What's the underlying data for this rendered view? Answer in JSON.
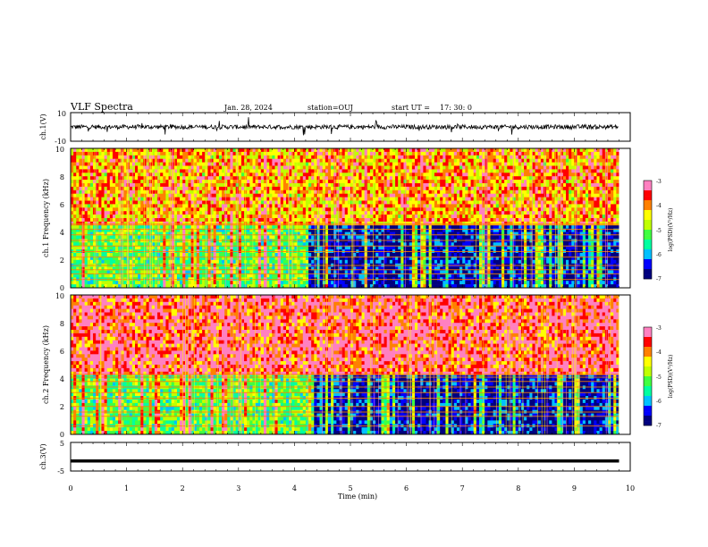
{
  "header": {
    "title": "VLF Spectra",
    "date": "Jan. 28, 2024",
    "station": "station=OUJ",
    "start_label": "start  UT =",
    "start_time": "17: 30: 0"
  },
  "chart_data": [
    {
      "type": "line",
      "name": "ch1-waveform",
      "ylabel": "ch.1(V)",
      "ylim": [
        -10,
        10
      ],
      "yticks": [
        "10",
        "-10"
      ],
      "xlim": [
        0,
        10
      ],
      "baseline": 0,
      "noise_amplitude": 1.5,
      "spike_amplitude": 6
    },
    {
      "type": "heatmap",
      "name": "ch1-spectrogram",
      "ylabel": "ch.1 Frequency (kHz)",
      "ylim": [
        0,
        10
      ],
      "yticks": [
        "0",
        "2",
        "4",
        "6",
        "8",
        "10"
      ],
      "xlim": [
        0,
        9.8
      ],
      "colorbar": {
        "label": "log(PSD)(V²/Hz)",
        "range": [
          -7,
          -3
        ],
        "ticks": [
          "-3",
          "-4",
          "-5",
          "-6",
          "-7"
        ]
      },
      "low_band_khz": [
        0,
        4.5
      ],
      "lines_khz": [
        0.6,
        1.0,
        1.3,
        1.6,
        2.2,
        2.6,
        3.0,
        3.4,
        3.8,
        4.2,
        4.5,
        4.6
      ]
    },
    {
      "type": "heatmap",
      "name": "ch2-spectrogram",
      "ylabel": "ch.2 Frequency (kHz)",
      "ylim": [
        0,
        10
      ],
      "yticks": [
        "0",
        "2",
        "4",
        "6",
        "8",
        "10"
      ],
      "xlim": [
        0,
        9.8
      ],
      "colorbar": {
        "label": "log(PSD)(V²/Hz)",
        "range": [
          -7,
          -3
        ],
        "ticks": [
          "-3",
          "-4",
          "-5",
          "-6",
          "-7"
        ]
      },
      "low_band_khz": [
        0,
        4.3
      ],
      "lines_khz": [
        0.6,
        1.3,
        1.6,
        2.0,
        2.6,
        3.0,
        3.4,
        3.8,
        4.1,
        4.3
      ]
    },
    {
      "type": "line",
      "name": "ch3-waveform",
      "ylabel": "ch.3(V)",
      "ylim": [
        -5,
        5
      ],
      "yticks": [
        "5",
        "-5"
      ],
      "xlim": [
        0,
        10
      ],
      "baseline": -1.5
    }
  ],
  "xaxis": {
    "label": "Time  (min)",
    "ticks": [
      "0",
      "1",
      "2",
      "3",
      "4",
      "5",
      "6",
      "7",
      "8",
      "9",
      "10"
    ]
  },
  "colors": {
    "jet": [
      "#00007f",
      "#0000ff",
      "#00c0ff",
      "#00ffa0",
      "#40ff40",
      "#c0ff00",
      "#ffff00",
      "#ff8000",
      "#ff0000",
      "#ff80c0"
    ]
  }
}
